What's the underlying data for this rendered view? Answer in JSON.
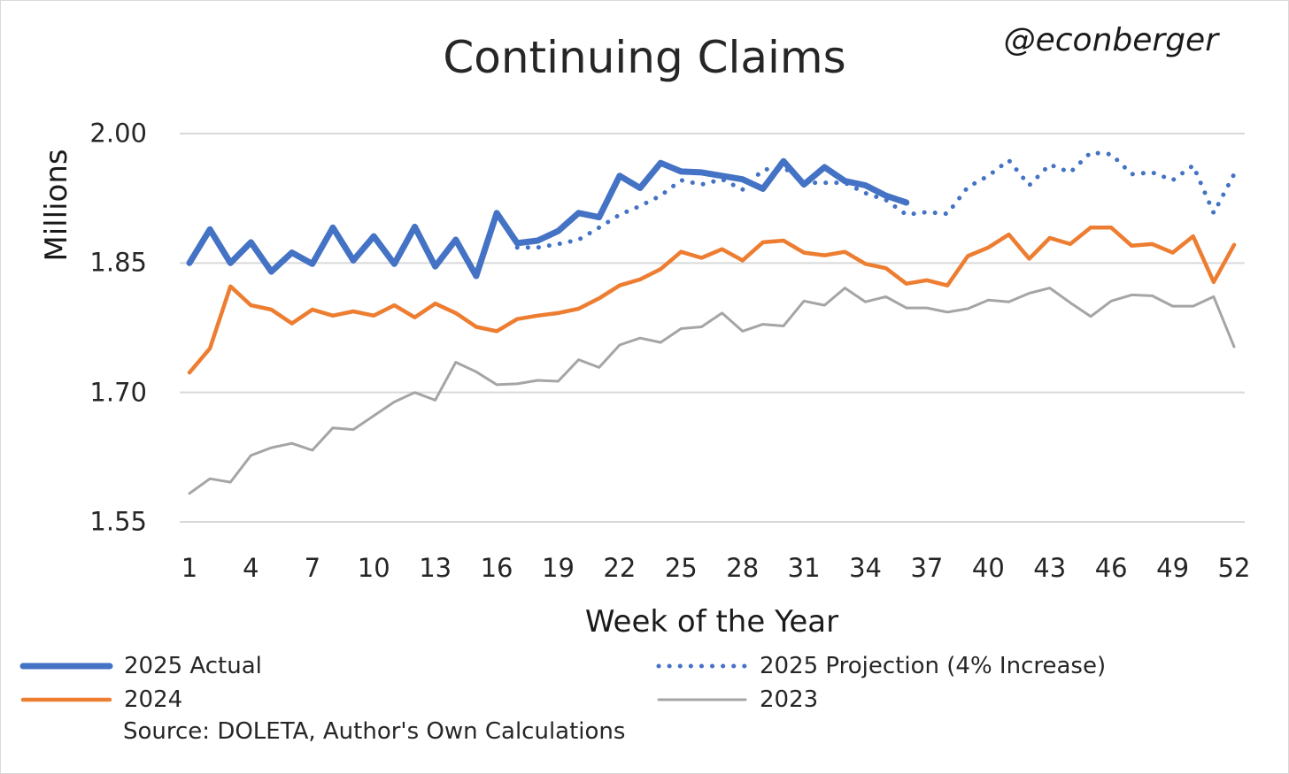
{
  "header": {
    "title": "Continuing Claims",
    "watermark": "@econberger"
  },
  "footer": {
    "source": "Source: DOLETA, Author's Own Calculations"
  },
  "chart_data": {
    "type": "line",
    "title": "Continuing Claims",
    "xlabel": "Week of the Year",
    "ylabel": "Millions",
    "xlim": [
      1,
      52
    ],
    "ylim": [
      1.55,
      2.0
    ],
    "ytick_labels": [
      "2.00",
      "1.85",
      "1.70",
      "1.55"
    ],
    "yticks": [
      2.0,
      1.85,
      1.7,
      1.55
    ],
    "xtick_labels": [
      "1",
      "4",
      "7",
      "10",
      "13",
      "16",
      "19",
      "22",
      "25",
      "28",
      "31",
      "34",
      "37",
      "40",
      "43",
      "46",
      "49",
      "52"
    ],
    "xticks": [
      1,
      4,
      7,
      10,
      13,
      16,
      19,
      22,
      25,
      28,
      31,
      34,
      37,
      40,
      43,
      46,
      49,
      52
    ],
    "grid": "horizontal",
    "legend_position": "bottom",
    "series": [
      {
        "name": "2023",
        "color": "#a5a5a5",
        "style": "solid-thin",
        "x": [
          1,
          2,
          3,
          4,
          5,
          6,
          7,
          8,
          9,
          10,
          11,
          12,
          13,
          14,
          15,
          16,
          17,
          18,
          19,
          20,
          21,
          22,
          23,
          24,
          25,
          26,
          27,
          28,
          29,
          30,
          31,
          32,
          33,
          34,
          35,
          36,
          37,
          38,
          39,
          40,
          41,
          42,
          43,
          44,
          45,
          46,
          47,
          48,
          49,
          50,
          51,
          52
        ],
        "values": [
          1.583,
          1.6,
          1.596,
          1.627,
          1.636,
          1.641,
          1.633,
          1.659,
          1.657,
          1.673,
          1.689,
          1.7,
          1.691,
          1.735,
          1.724,
          1.709,
          1.71,
          1.714,
          1.713,
          1.738,
          1.729,
          1.755,
          1.763,
          1.758,
          1.774,
          1.776,
          1.792,
          1.771,
          1.779,
          1.777,
          1.806,
          1.801,
          1.821,
          1.805,
          1.811,
          1.798,
          1.798,
          1.793,
          1.797,
          1.807,
          1.805,
          1.815,
          1.821,
          1.804,
          1.788,
          1.806,
          1.813,
          1.812,
          1.8,
          1.8,
          1.811,
          1.753
        ]
      },
      {
        "name": "2024",
        "color": "#ed7d31",
        "style": "solid",
        "x": [
          1,
          2,
          3,
          4,
          5,
          6,
          7,
          8,
          9,
          10,
          11,
          12,
          13,
          14,
          15,
          16,
          17,
          18,
          19,
          20,
          21,
          22,
          23,
          24,
          25,
          26,
          27,
          28,
          29,
          30,
          31,
          32,
          33,
          34,
          35,
          36,
          37,
          38,
          39,
          40,
          41,
          42,
          43,
          44,
          45,
          46,
          47,
          48,
          49,
          50,
          51,
          52
        ],
        "values": [
          1.723,
          1.751,
          1.823,
          1.801,
          1.796,
          1.78,
          1.796,
          1.789,
          1.794,
          1.789,
          1.801,
          1.787,
          1.803,
          1.792,
          1.776,
          1.771,
          1.785,
          1.789,
          1.792,
          1.797,
          1.809,
          1.824,
          1.831,
          1.843,
          1.863,
          1.856,
          1.866,
          1.853,
          1.874,
          1.876,
          1.862,
          1.859,
          1.863,
          1.849,
          1.844,
          1.826,
          1.83,
          1.824,
          1.858,
          1.868,
          1.883,
          1.855,
          1.879,
          1.872,
          1.891,
          1.891,
          1.87,
          1.872,
          1.862,
          1.881,
          1.828,
          1.871
        ]
      },
      {
        "name": "2025 Projection (4% Increase)",
        "color": "#4472c4",
        "style": "dotted",
        "x": [
          17,
          18,
          19,
          20,
          21,
          22,
          23,
          24,
          25,
          26,
          27,
          28,
          29,
          30,
          31,
          32,
          33,
          34,
          35,
          36,
          37,
          38,
          39,
          40,
          41,
          42,
          43,
          44,
          45,
          46,
          47,
          48,
          49,
          50,
          51,
          52
        ],
        "values": [
          1.868,
          1.868,
          1.872,
          1.877,
          1.891,
          1.906,
          1.916,
          1.928,
          1.946,
          1.941,
          1.947,
          1.935,
          1.958,
          1.961,
          1.943,
          1.943,
          1.943,
          1.931,
          1.923,
          1.906,
          1.909,
          1.907,
          1.938,
          1.951,
          1.969,
          1.94,
          1.964,
          1.955,
          1.978,
          1.976,
          1.953,
          1.955,
          1.946,
          1.963,
          1.908,
          1.953
        ]
      },
      {
        "name": "2025 Actual",
        "color": "#4472c4",
        "style": "solid-thick",
        "x": [
          1,
          2,
          3,
          4,
          5,
          6,
          7,
          8,
          9,
          10,
          11,
          12,
          13,
          14,
          15,
          16,
          17,
          18,
          19,
          20,
          21,
          22,
          23,
          24,
          25,
          26,
          27,
          28,
          29,
          30,
          31,
          32,
          33,
          34,
          35,
          36
        ],
        "values": [
          1.85,
          1.889,
          1.85,
          1.874,
          1.84,
          1.862,
          1.849,
          1.891,
          1.853,
          1.881,
          1.849,
          1.892,
          1.846,
          1.877,
          1.835,
          1.908,
          1.873,
          1.876,
          1.887,
          1.908,
          1.903,
          1.951,
          1.937,
          1.966,
          1.956,
          1.955,
          1.951,
          1.947,
          1.936,
          1.968,
          1.941,
          1.961,
          1.945,
          1.94,
          1.928,
          1.92
        ]
      }
    ],
    "legend": [
      {
        "label": "2025 Actual",
        "color": "#4472c4",
        "style": "solid-thick"
      },
      {
        "label": "2025 Projection (4% Increase)",
        "color": "#4472c4",
        "style": "dotted"
      },
      {
        "label": "2024",
        "color": "#ed7d31",
        "style": "solid"
      },
      {
        "label": "2023",
        "color": "#a5a5a5",
        "style": "solid-thin"
      }
    ]
  }
}
